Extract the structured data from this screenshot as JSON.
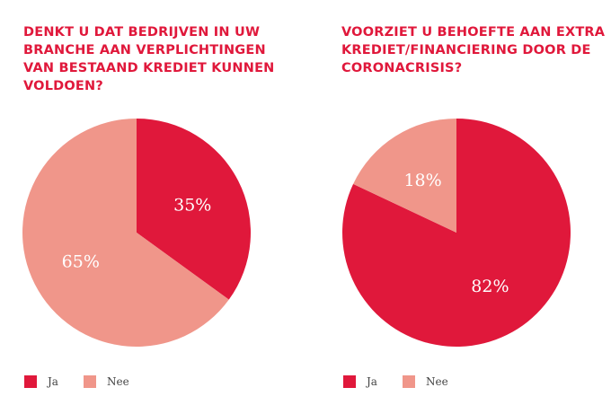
{
  "colors": {
    "ja": "#e0183b",
    "nee": "#f0968a",
    "title": "#e0183b"
  },
  "chart_data": [
    {
      "type": "pie",
      "title": "DENKT U DAT BEDRIJVEN IN UW BRANCHE AAN VERPLICHTINGEN VAN BESTAAND KREDIET KUNNEN VOLDOEN?",
      "slices": [
        {
          "name": "Ja",
          "value": 35,
          "label": "35%"
        },
        {
          "name": "Nee",
          "value": 65,
          "label": "65%"
        }
      ],
      "legend": [
        "Ja",
        "Nee"
      ],
      "legend_position": "bottom-left"
    },
    {
      "type": "pie",
      "title": "VOORZIET U BEHOEFTE AAN EXTRA KREDIET/FINANCIERING DOOR DE CORONACRISIS?",
      "slices": [
        {
          "name": "Ja",
          "value": 82,
          "label": "82%"
        },
        {
          "name": "Nee",
          "value": 18,
          "label": "18%"
        }
      ],
      "legend": [
        "Ja",
        "Nee"
      ],
      "legend_position": "bottom-left"
    }
  ]
}
